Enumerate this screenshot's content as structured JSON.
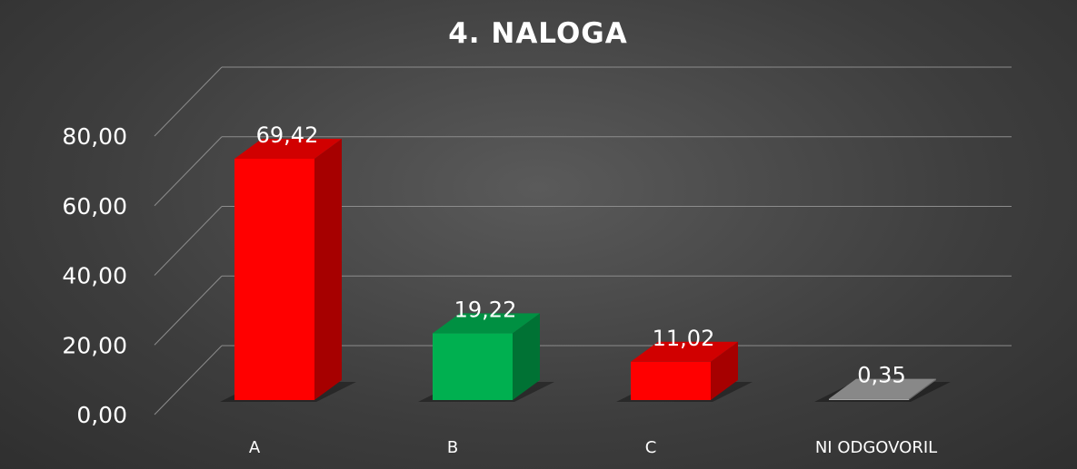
{
  "chart_data": {
    "type": "bar",
    "title": "4. NALOGA",
    "xlabel": "",
    "ylabel": "",
    "categories": [
      "A",
      "B",
      "C",
      "NI ODGOVORIL"
    ],
    "values": [
      69.42,
      19.22,
      11.02,
      0.35
    ],
    "value_labels": [
      "69,42",
      "19,22",
      "11,02",
      "0,35"
    ],
    "y_ticks": [
      "0,00",
      "20,00",
      "40,00",
      "60,00",
      "80,00"
    ],
    "ylim": [
      0,
      80
    ],
    "grid": true,
    "legend": "none",
    "style": "3d-column",
    "bar_colors": [
      "#ff0000",
      "#00b050",
      "#ff0000",
      "#a6a6a6"
    ]
  }
}
